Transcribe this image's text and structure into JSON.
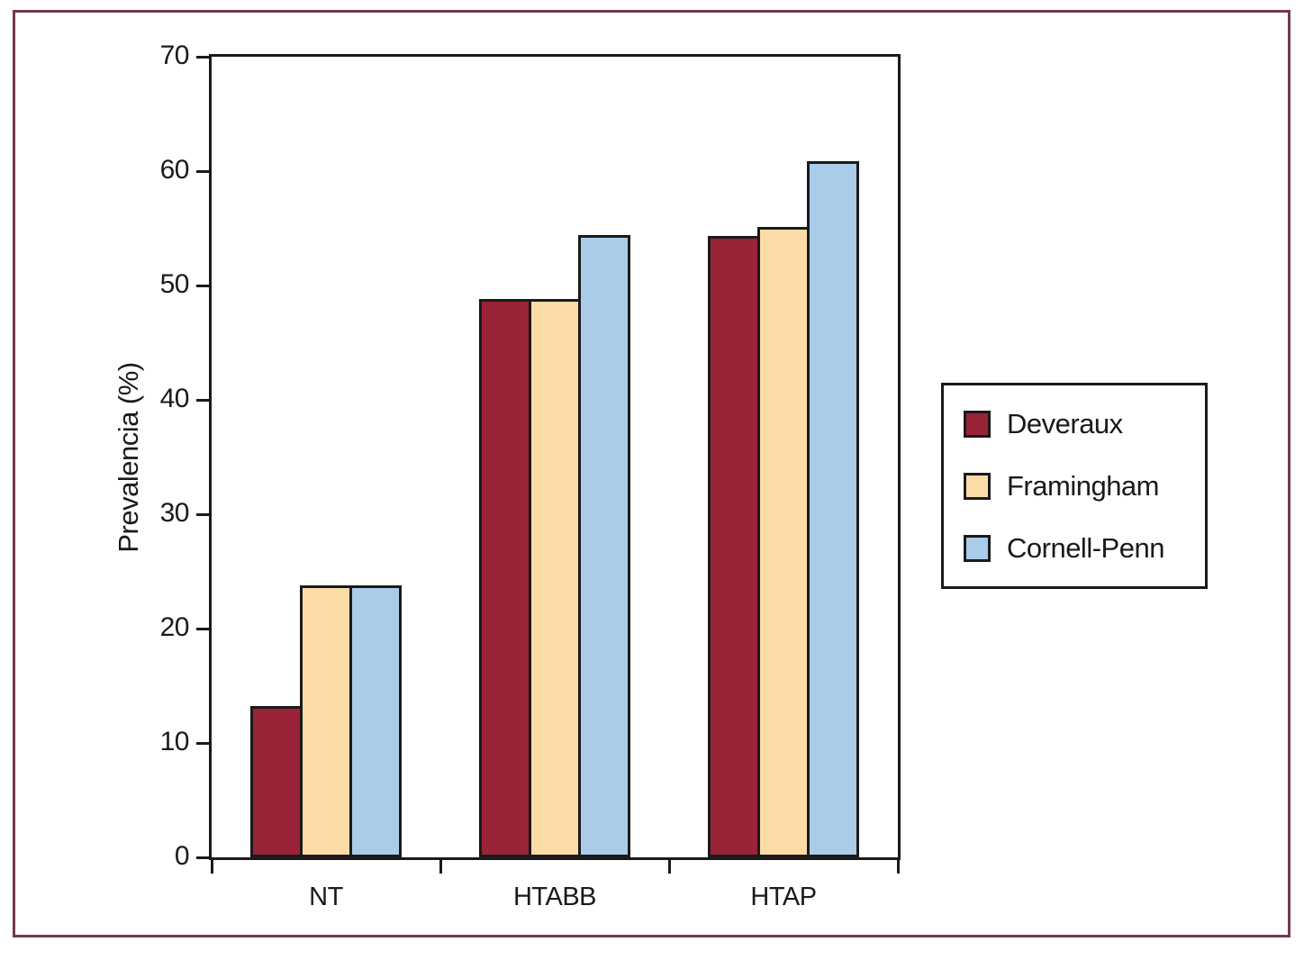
{
  "figure": {
    "frame_color": "#73394B",
    "background_color": "#FFFFFF",
    "axis_color": "#1A1A1A"
  },
  "chart_data": {
    "type": "bar",
    "title": "",
    "xlabel": "",
    "ylabel": "Prevalencia (%)",
    "ylim": [
      0,
      70
    ],
    "yticks": [
      0,
      10,
      20,
      30,
      40,
      50,
      60,
      70
    ],
    "grid": false,
    "legend_position": "right",
    "categories": [
      "NT",
      "HTABB",
      "HTAP"
    ],
    "series": [
      {
        "name": "Deveraux",
        "color": "#9A2338",
        "values": [
          13.2,
          48.8,
          54.3
        ]
      },
      {
        "name": "Framingham",
        "color": "#FCDBA7",
        "values": [
          23.8,
          48.8,
          55.1
        ]
      },
      {
        "name": "Cornell-Penn",
        "color": "#AACCE9",
        "values": [
          23.8,
          54.4,
          60.9
        ]
      }
    ]
  }
}
